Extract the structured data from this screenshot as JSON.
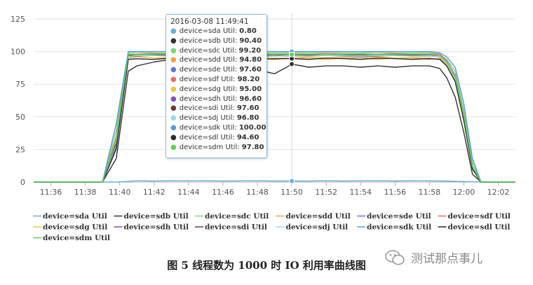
{
  "chart_data": {
    "type": "line",
    "title": "",
    "xlabel": "",
    "ylabel": "",
    "ylim": [
      0,
      125
    ],
    "yticks": [
      0,
      25,
      50,
      75,
      100,
      125
    ],
    "xlim": [
      "11:35",
      "12:03"
    ],
    "xticks": [
      "11:36",
      "11:38",
      "11:40",
      "11:42",
      "11:44",
      "11:46",
      "11:48",
      "11:50",
      "11:52",
      "11:54",
      "11:56",
      "11:58",
      "12:00",
      "12:02"
    ],
    "grid": "horizontal",
    "legend_position": "bottom",
    "x": [
      "11:35",
      "11:39",
      "11:39.8",
      "11:40.5",
      "11:41",
      "11:42",
      "11:43",
      "11:44",
      "11:45",
      "11:46",
      "11:47",
      "11:48",
      "11:49",
      "11:49.7",
      "11:50",
      "11:51",
      "11:52",
      "11:53",
      "11:54",
      "11:55",
      "11:56",
      "11:57",
      "11:58",
      "11:58.6",
      "11:59",
      "11:59.5",
      "12:00",
      "12:00.5",
      "12:01",
      "12:02",
      "12:03"
    ],
    "series": [
      {
        "name": "device=sda Util",
        "color": "#6baed6",
        "values": [
          0,
          0,
          0,
          0.5,
          1,
          0.8,
          1,
          0.9,
          1,
          0.8,
          0.9,
          1,
          0.8,
          0.8,
          0.8,
          0.8,
          1,
          0.8,
          0.9,
          1,
          0.8,
          1,
          0.9,
          0.8,
          0.8,
          0.6,
          0.4,
          0.2,
          0,
          0,
          0
        ]
      },
      {
        "name": "device=sdb Util",
        "color": "#333333",
        "values": [
          0,
          0,
          18,
          85,
          89,
          92,
          94,
          95,
          94,
          95,
          93,
          86,
          83,
          88,
          90.4,
          88,
          89,
          89,
          88,
          89,
          88,
          89,
          89,
          87,
          80,
          65,
          38,
          6,
          0,
          0,
          0
        ]
      },
      {
        "name": "device=sdc Util",
        "color": "#7ed37e",
        "values": [
          0,
          0,
          40,
          99,
          99.5,
          99,
          99,
          99.5,
          99,
          99,
          99.5,
          99,
          99,
          99.2,
          99.2,
          99,
          99.5,
          99,
          99,
          99.5,
          99,
          99,
          99.2,
          98,
          94,
          85,
          55,
          15,
          0,
          0,
          0
        ]
      },
      {
        "name": "device=sdd Util",
        "color": "#f0a050",
        "values": [
          0,
          0,
          30,
          95,
          96,
          95,
          94,
          95,
          95,
          94,
          95,
          95,
          94,
          94.8,
          94.8,
          95,
          94,
          95,
          95,
          94,
          95,
          95,
          94,
          95,
          90,
          78,
          48,
          10,
          0,
          0,
          0
        ]
      },
      {
        "name": "device=sde Util",
        "color": "#6677cc",
        "values": [
          0,
          0,
          28,
          96,
          97,
          97.5,
          97,
          97.5,
          97,
          97.5,
          97,
          97.5,
          97,
          97.6,
          97.6,
          97,
          97.5,
          97,
          97.5,
          97,
          97.5,
          97,
          97.5,
          97,
          92,
          80,
          50,
          12,
          0,
          0,
          0
        ]
      },
      {
        "name": "device=sdf Util",
        "color": "#e07070",
        "values": [
          0,
          0,
          35,
          98,
          98,
          98.5,
          98,
          98.2,
          98,
          98.5,
          98,
          98.2,
          98,
          98.2,
          98.2,
          98,
          98.5,
          98,
          98.2,
          98,
          98.5,
          98,
          98.2,
          98,
          93,
          82,
          52,
          12,
          0,
          0,
          0
        ]
      },
      {
        "name": "device=sdg Util",
        "color": "#e8c84a",
        "values": [
          0,
          0,
          30,
          95,
          96,
          95,
          95.5,
          95,
          96,
          95,
          95.5,
          95,
          95,
          95,
          95,
          96,
          95,
          95.5,
          95,
          96,
          95,
          95.5,
          95,
          94,
          90,
          78,
          47,
          10,
          0,
          0,
          0
        ]
      },
      {
        "name": "device=sdh Util",
        "color": "#7a55b5",
        "values": [
          0,
          0,
          25,
          96,
          96.5,
          97,
          96.5,
          96,
          96.6,
          97,
          96.5,
          96,
          96.6,
          96.6,
          96.6,
          96.5,
          97,
          96.5,
          96,
          96.6,
          97,
          96.5,
          96.6,
          96,
          91,
          79,
          49,
          11,
          0,
          0,
          0
        ]
      },
      {
        "name": "device=sdi Util",
        "color": "#6b3a3a",
        "values": [
          0,
          0,
          30,
          97,
          97.5,
          97.6,
          97,
          97.6,
          97.5,
          97,
          97.6,
          97.5,
          97,
          97.6,
          97.6,
          97.5,
          97,
          97.6,
          97.5,
          97,
          97.6,
          97.5,
          97.6,
          96,
          91,
          80,
          50,
          11,
          0,
          0,
          0
        ]
      },
      {
        "name": "device=sdj Util",
        "color": "#9fd8e8",
        "values": [
          0,
          0,
          28,
          96,
          97,
          96.8,
          96.5,
          97,
          96.8,
          96.5,
          97,
          96.8,
          96.5,
          96.8,
          96.8,
          96.5,
          97,
          96.8,
          96.5,
          97,
          96.8,
          96.5,
          96.8,
          96,
          91,
          79,
          49,
          11,
          0,
          0,
          0
        ]
      },
      {
        "name": "device=sdk Util",
        "color": "#5a9fd0",
        "values": [
          0,
          0,
          45,
          100,
          100,
          100,
          100,
          100,
          100,
          100,
          100,
          100,
          100,
          100,
          100,
          100,
          100,
          100,
          100,
          100,
          100,
          100,
          100,
          99,
          96,
          88,
          60,
          18,
          0,
          0,
          0
        ]
      },
      {
        "name": "device=sdl Util",
        "color": "#2b2b2b",
        "values": [
          0,
          0,
          26,
          94,
          94.5,
          94,
          95,
          94.6,
          94,
          95,
          94.6,
          94,
          94.5,
          94.6,
          94.6,
          94,
          95,
          94.6,
          94,
          95,
          94.6,
          94,
          94.6,
          94,
          89,
          77,
          47,
          10,
          0,
          0,
          0
        ]
      },
      {
        "name": "device=sdm Util",
        "color": "#66cc66",
        "values": [
          0,
          0,
          33,
          98,
          97.5,
          97.8,
          98,
          97.5,
          97.8,
          98,
          97.5,
          97.8,
          98,
          97.8,
          97.8,
          98,
          97.5,
          97.8,
          98,
          97.5,
          97.8,
          98,
          97.8,
          97,
          92,
          81,
          51,
          12,
          0,
          0,
          0
        ]
      }
    ]
  },
  "tooltip": {
    "title": "2016-03-08 11:49:41",
    "rows": [
      {
        "label": "device=sda Util:",
        "value": "0.80",
        "color": "#6baed6"
      },
      {
        "label": "device=sdb Util:",
        "value": "90.40",
        "color": "#333333"
      },
      {
        "label": "device=sdc Util:",
        "value": "99.20",
        "color": "#7ed37e"
      },
      {
        "label": "device=sdd Util:",
        "value": "94.80",
        "color": "#f0a050"
      },
      {
        "label": "device=sde Util:",
        "value": "97.60",
        "color": "#6677cc"
      },
      {
        "label": "device=sdf Util:",
        "value": "98.20",
        "color": "#e07070"
      },
      {
        "label": "device=sdg Util:",
        "value": "95.00",
        "color": "#e8c84a"
      },
      {
        "label": "device=sdh Util:",
        "value": "96.60",
        "color": "#7a55b5"
      },
      {
        "label": "device=sdi Util:",
        "value": "97.60",
        "color": "#6b3a3a"
      },
      {
        "label": "device=sdj Util:",
        "value": "96.80",
        "color": "#9fd8e8"
      },
      {
        "label": "device=sdk Util:",
        "value": "100.00",
        "color": "#5a9fd0"
      },
      {
        "label": "device=sdl Util:",
        "value": "94.60",
        "color": "#2b2b2b"
      },
      {
        "label": "device=sdm Util:",
        "value": "97.80",
        "color": "#66cc66"
      }
    ]
  },
  "caption": "图 5 线程数为 1000 时 IO 利用率曲线图",
  "watermark": {
    "text": "测试那点事儿",
    "icon": "wechat-icon"
  }
}
